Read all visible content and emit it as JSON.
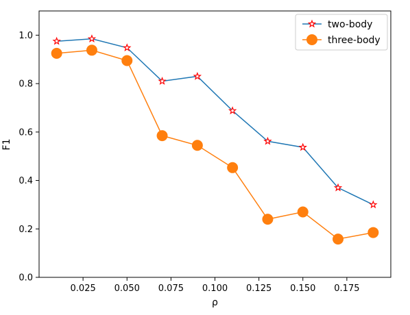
{
  "chart_data": {
    "type": "line",
    "title": "",
    "xlabel": "ρ",
    "ylabel": "F1",
    "xlim": [
      0.0,
      0.2
    ],
    "ylim": [
      0.0,
      1.1
    ],
    "x_ticks": [
      0.025,
      0.05,
      0.075,
      0.1,
      0.125,
      0.15,
      0.175
    ],
    "x_tick_labels": [
      "0.025",
      "0.050",
      "0.075",
      "0.100",
      "0.125",
      "0.150",
      "0.175"
    ],
    "y_ticks": [
      0.0,
      0.2,
      0.4,
      0.6,
      0.8,
      1.0
    ],
    "y_tick_labels": [
      "0.0",
      "0.2",
      "0.4",
      "0.6",
      "0.8",
      "1.0"
    ],
    "grid": false,
    "legend_position": "top-right",
    "x": [
      0.01,
      0.03,
      0.05,
      0.07,
      0.09,
      0.11,
      0.13,
      0.15,
      0.17,
      0.19
    ],
    "series": [
      {
        "name": "two-body",
        "values": [
          0.975,
          0.985,
          0.948,
          0.81,
          0.83,
          0.688,
          0.562,
          0.537,
          0.37,
          0.3
        ],
        "color": "#1f77b4",
        "marker": "star",
        "marker_edge_color": "#ff0000",
        "marker_face_color": "#ffffff"
      },
      {
        "name": "three-body",
        "values": [
          0.925,
          0.938,
          0.895,
          0.585,
          0.545,
          0.453,
          0.24,
          0.27,
          0.158,
          0.185
        ],
        "color": "#ff7f0e",
        "marker": "circle",
        "marker_edge_color": "#ff7f0e",
        "marker_face_color": "#ff7f0e"
      }
    ]
  }
}
